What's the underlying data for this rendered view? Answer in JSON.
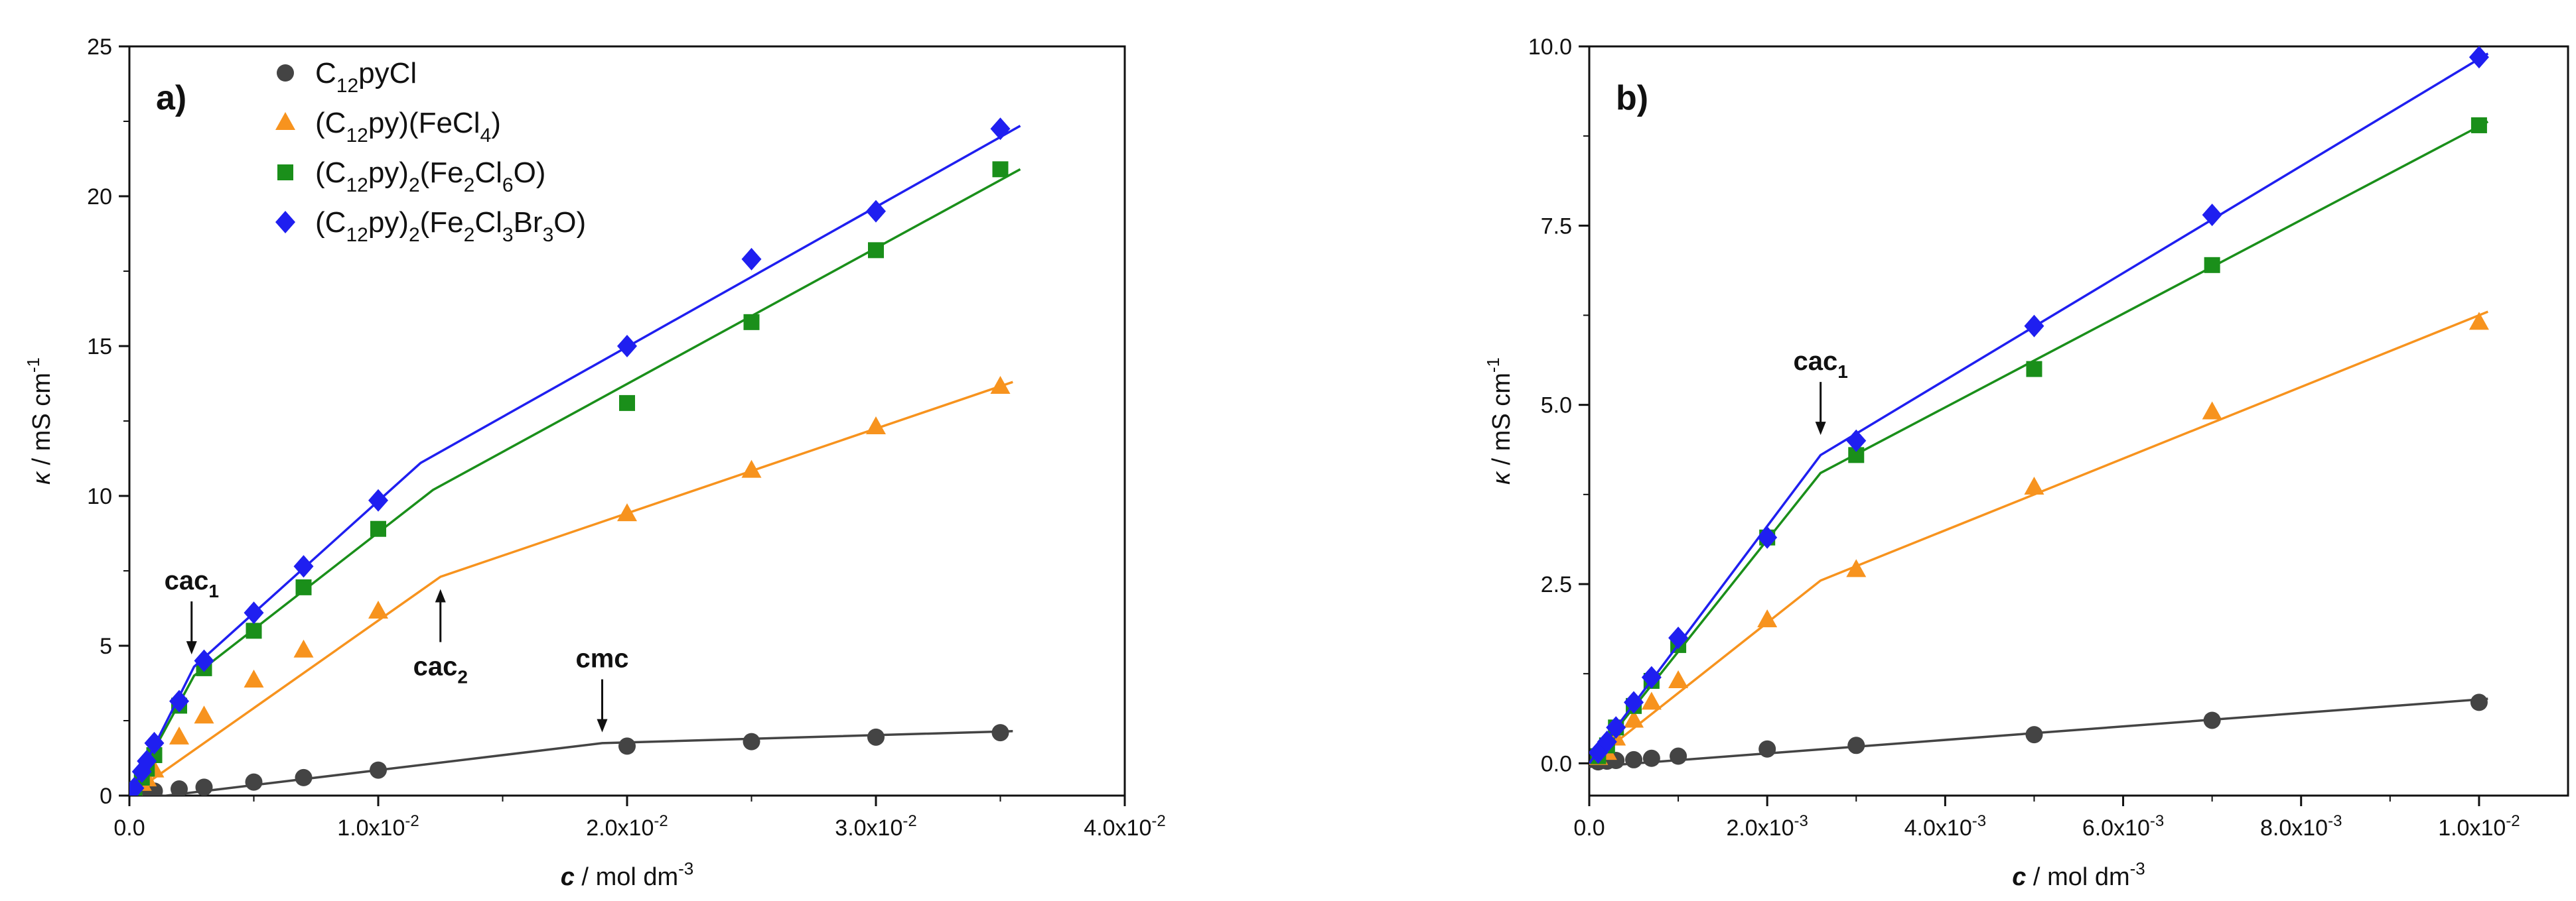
{
  "colors": {
    "C12pyCl": "#444444",
    "FeCl4": "#f7931e",
    "Fe2Cl6O": "#1a8f1a",
    "Fe2Cl3Br3O": "#1f1ff0",
    "axis": "#111111"
  },
  "chart_data": [
    {
      "panel_label": "a)",
      "type": "scatter",
      "xlabel": {
        "symbol": "c",
        "unit": "mol dm",
        "exp": "-3"
      },
      "ylabel": {
        "symbol": "κ",
        "unit": "mS cm",
        "exp": "-1"
      },
      "xlim": [
        0,
        0.04
      ],
      "ylim": [
        0,
        25
      ],
      "xticks": [
        {
          "value": 0,
          "mant": "0.0",
          "exp": ""
        },
        {
          "value": 0.01,
          "mant": "1.0x10",
          "exp": "-2"
        },
        {
          "value": 0.02,
          "mant": "2.0x10",
          "exp": "-2"
        },
        {
          "value": 0.03,
          "mant": "3.0x10",
          "exp": "-2"
        },
        {
          "value": 0.04,
          "mant": "4.0x10",
          "exp": "-2"
        }
      ],
      "yticks": [
        {
          "value": 0,
          "label": "0"
        },
        {
          "value": 5,
          "label": "5"
        },
        {
          "value": 10,
          "label": "10"
        },
        {
          "value": 15,
          "label": "15"
        },
        {
          "value": 20,
          "label": "20"
        },
        {
          "value": 25,
          "label": "25"
        }
      ],
      "legend": {
        "position": "top-left",
        "entries": [
          {
            "series": "C12pyCl",
            "parts": [
              [
                "C",
                ""
              ],
              [
                "12",
                "sub"
              ],
              [
                "pyCl",
                ""
              ]
            ]
          },
          {
            "series": "FeCl4",
            "parts": [
              [
                "(C",
                ""
              ],
              [
                "12",
                "sub"
              ],
              [
                "py)(FeCl",
                ""
              ],
              [
                "4",
                "sub"
              ],
              [
                ")",
                ""
              ]
            ]
          },
          {
            "series": "Fe2Cl6O",
            "parts": [
              [
                "(C",
                ""
              ],
              [
                "12",
                "sub"
              ],
              [
                "py)",
                ""
              ],
              [
                "2",
                "sub"
              ],
              [
                "(Fe",
                ""
              ],
              [
                "2",
                "sub"
              ],
              [
                "Cl",
                ""
              ],
              [
                "6",
                "sub"
              ],
              [
                "O)",
                ""
              ]
            ]
          },
          {
            "series": "Fe2Cl3Br3O",
            "parts": [
              [
                "(C",
                ""
              ],
              [
                "12",
                "sub"
              ],
              [
                "py)",
                ""
              ],
              [
                "2",
                "sub"
              ],
              [
                "(Fe",
                ""
              ],
              [
                "2",
                "sub"
              ],
              [
                "Cl",
                ""
              ],
              [
                "3",
                "sub"
              ],
              [
                "Br",
                ""
              ],
              [
                "3",
                "sub"
              ],
              [
                "O)",
                ""
              ]
            ]
          }
        ]
      },
      "series": [
        {
          "key": "C12pyCl",
          "marker": "circle",
          "points": [
            [
              0.0005,
              0.08
            ],
            [
              0.001,
              0.15
            ],
            [
              0.002,
              0.22
            ],
            [
              0.003,
              0.28
            ],
            [
              0.005,
              0.45
            ],
            [
              0.007,
              0.6
            ],
            [
              0.01,
              0.85
            ],
            [
              0.02,
              1.65
            ],
            [
              0.025,
              1.8
            ],
            [
              0.03,
              1.95
            ],
            [
              0.035,
              2.1
            ]
          ],
          "fit": [
            [
              0,
              -0.15
            ],
            [
              0.019,
              1.75
            ],
            [
              0.0355,
              2.15
            ]
          ]
        },
        {
          "key": "FeCl4",
          "marker": "triangle",
          "points": [
            [
              0.0002,
              0.15
            ],
            [
              0.0005,
              0.4
            ],
            [
              0.0007,
              0.55
            ],
            [
              0.001,
              0.85
            ],
            [
              0.002,
              1.95
            ],
            [
              0.003,
              2.65
            ],
            [
              0.005,
              3.85
            ],
            [
              0.007,
              4.85
            ],
            [
              0.01,
              6.15
            ],
            [
              0.02,
              9.4
            ],
            [
              0.025,
              10.85
            ],
            [
              0.03,
              12.3
            ],
            [
              0.035,
              13.65
            ]
          ],
          "fit": [
            [
              0,
              0
            ],
            [
              0.0125,
              7.3
            ],
            [
              0.0355,
              13.8
            ]
          ]
        },
        {
          "key": "Fe2Cl6O",
          "marker": "square",
          "points": [
            [
              0.0002,
              0.2
            ],
            [
              0.0005,
              0.6
            ],
            [
              0.0007,
              0.9
            ],
            [
              0.001,
              1.35
            ],
            [
              0.002,
              3.0
            ],
            [
              0.003,
              4.25
            ],
            [
              0.005,
              5.5
            ],
            [
              0.007,
              6.95
            ],
            [
              0.01,
              8.9
            ],
            [
              0.02,
              13.1
            ],
            [
              0.025,
              15.8
            ],
            [
              0.03,
              18.2
            ],
            [
              0.035,
              20.9
            ]
          ],
          "fit": [
            [
              0,
              0
            ],
            [
              0.0026,
              4.0
            ],
            [
              0.0122,
              10.2
            ],
            [
              0.0358,
              20.9
            ]
          ]
        },
        {
          "key": "Fe2Cl3Br3O",
          "marker": "diamond",
          "points": [
            [
              0.0002,
              0.25
            ],
            [
              0.0005,
              0.8
            ],
            [
              0.0007,
              1.15
            ],
            [
              0.001,
              1.75
            ],
            [
              0.002,
              3.15
            ],
            [
              0.003,
              4.5
            ],
            [
              0.005,
              6.1
            ],
            [
              0.007,
              7.65
            ],
            [
              0.01,
              9.85
            ],
            [
              0.02,
              15.0
            ],
            [
              0.025,
              17.9
            ],
            [
              0.03,
              19.5
            ],
            [
              0.035,
              22.25
            ]
          ],
          "fit": [
            [
              0,
              0
            ],
            [
              0.0026,
              4.3
            ],
            [
              0.0117,
              11.1
            ],
            [
              0.0358,
              22.35
            ]
          ]
        }
      ],
      "annotations": [
        {
          "main": "cac",
          "sub": "1",
          "x": 0.0025,
          "y": 4.4,
          "arrow": "down"
        },
        {
          "main": "cac",
          "sub": "2",
          "x": 0.0125,
          "y": 7.2,
          "arrow": "up"
        },
        {
          "main": "cmc",
          "sub": "",
          "x": 0.019,
          "y": 1.8,
          "arrow": "down"
        }
      ]
    },
    {
      "panel_label": "b)",
      "type": "scatter",
      "xlabel": {
        "symbol": "c",
        "unit": "mol dm",
        "exp": "-3"
      },
      "ylabel": {
        "symbol": "κ",
        "unit": "mS cm",
        "exp": "-1"
      },
      "xlim": [
        0,
        0.011
      ],
      "ylim": [
        -0.45,
        10
      ],
      "xticks": [
        {
          "value": 0,
          "mant": "0.0",
          "exp": ""
        },
        {
          "value": 0.002,
          "mant": "2.0x10",
          "exp": "-3"
        },
        {
          "value": 0.004,
          "mant": "4.0x10",
          "exp": "-3"
        },
        {
          "value": 0.006,
          "mant": "6.0x10",
          "exp": "-3"
        },
        {
          "value": 0.008,
          "mant": "8.0x10",
          "exp": "-3"
        },
        {
          "value": 0.01,
          "mant": "1.0x10",
          "exp": "-2"
        }
      ],
      "yticks": [
        {
          "value": 0,
          "label": "0.0"
        },
        {
          "value": 2.5,
          "label": "2.5"
        },
        {
          "value": 5,
          "label": "5.0"
        },
        {
          "value": 7.5,
          "label": "7.5"
        },
        {
          "value": 10,
          "label": "10.0"
        }
      ],
      "series": [
        {
          "key": "C12pyCl",
          "marker": "circle",
          "points": [
            [
              0.0001,
              0.02
            ],
            [
              0.0002,
              0.03
            ],
            [
              0.0003,
              0.04
            ],
            [
              0.0005,
              0.05
            ],
            [
              0.0007,
              0.07
            ],
            [
              0.001,
              0.1
            ],
            [
              0.002,
              0.2
            ],
            [
              0.003,
              0.25
            ],
            [
              0.005,
              0.4
            ],
            [
              0.007,
              0.6
            ],
            [
              0.01,
              0.85
            ]
          ],
          "fit": [
            [
              0,
              -0.05
            ],
            [
              0.0101,
              0.9
            ]
          ]
        },
        {
          "key": "FeCl4",
          "marker": "triangle",
          "points": [
            [
              0.0001,
              0.08
            ],
            [
              0.0002,
              0.15
            ],
            [
              0.0003,
              0.35
            ],
            [
              0.0005,
              0.6
            ],
            [
              0.0007,
              0.85
            ],
            [
              0.001,
              1.15
            ],
            [
              0.002,
              2.0
            ],
            [
              0.003,
              2.7
            ],
            [
              0.005,
              3.85
            ],
            [
              0.007,
              4.9
            ],
            [
              0.01,
              6.15
            ]
          ],
          "fit": [
            [
              0,
              0
            ],
            [
              0.0026,
              2.55
            ],
            [
              0.0101,
              6.3
            ]
          ]
        },
        {
          "key": "Fe2Cl6O",
          "marker": "square",
          "points": [
            [
              0.0001,
              0.1
            ],
            [
              0.0002,
              0.25
            ],
            [
              0.0003,
              0.5
            ],
            [
              0.0005,
              0.8
            ],
            [
              0.0007,
              1.15
            ],
            [
              0.001,
              1.65
            ],
            [
              0.002,
              3.15
            ],
            [
              0.003,
              4.3
            ],
            [
              0.005,
              5.5
            ],
            [
              0.007,
              6.95
            ],
            [
              0.01,
              8.9
            ]
          ],
          "fit": [
            [
              0,
              0
            ],
            [
              0.0026,
              4.05
            ],
            [
              0.0101,
              8.95
            ]
          ]
        },
        {
          "key": "Fe2Cl3Br3O",
          "marker": "diamond",
          "points": [
            [
              0.0001,
              0.15
            ],
            [
              0.0002,
              0.3
            ],
            [
              0.0003,
              0.5
            ],
            [
              0.0005,
              0.85
            ],
            [
              0.0007,
              1.2
            ],
            [
              0.001,
              1.75
            ],
            [
              0.002,
              3.15
            ],
            [
              0.003,
              4.5
            ],
            [
              0.005,
              6.1
            ],
            [
              0.007,
              7.65
            ],
            [
              0.01,
              9.85
            ]
          ],
          "fit": [
            [
              0,
              0
            ],
            [
              0.0026,
              4.3
            ],
            [
              0.0101,
              9.9
            ]
          ]
        }
      ],
      "annotations": [
        {
          "main": "cac",
          "sub": "1",
          "x": 0.0013,
          "y": 4.45,
          "arrow": "down",
          "target_x": 0.0026
        }
      ]
    }
  ]
}
